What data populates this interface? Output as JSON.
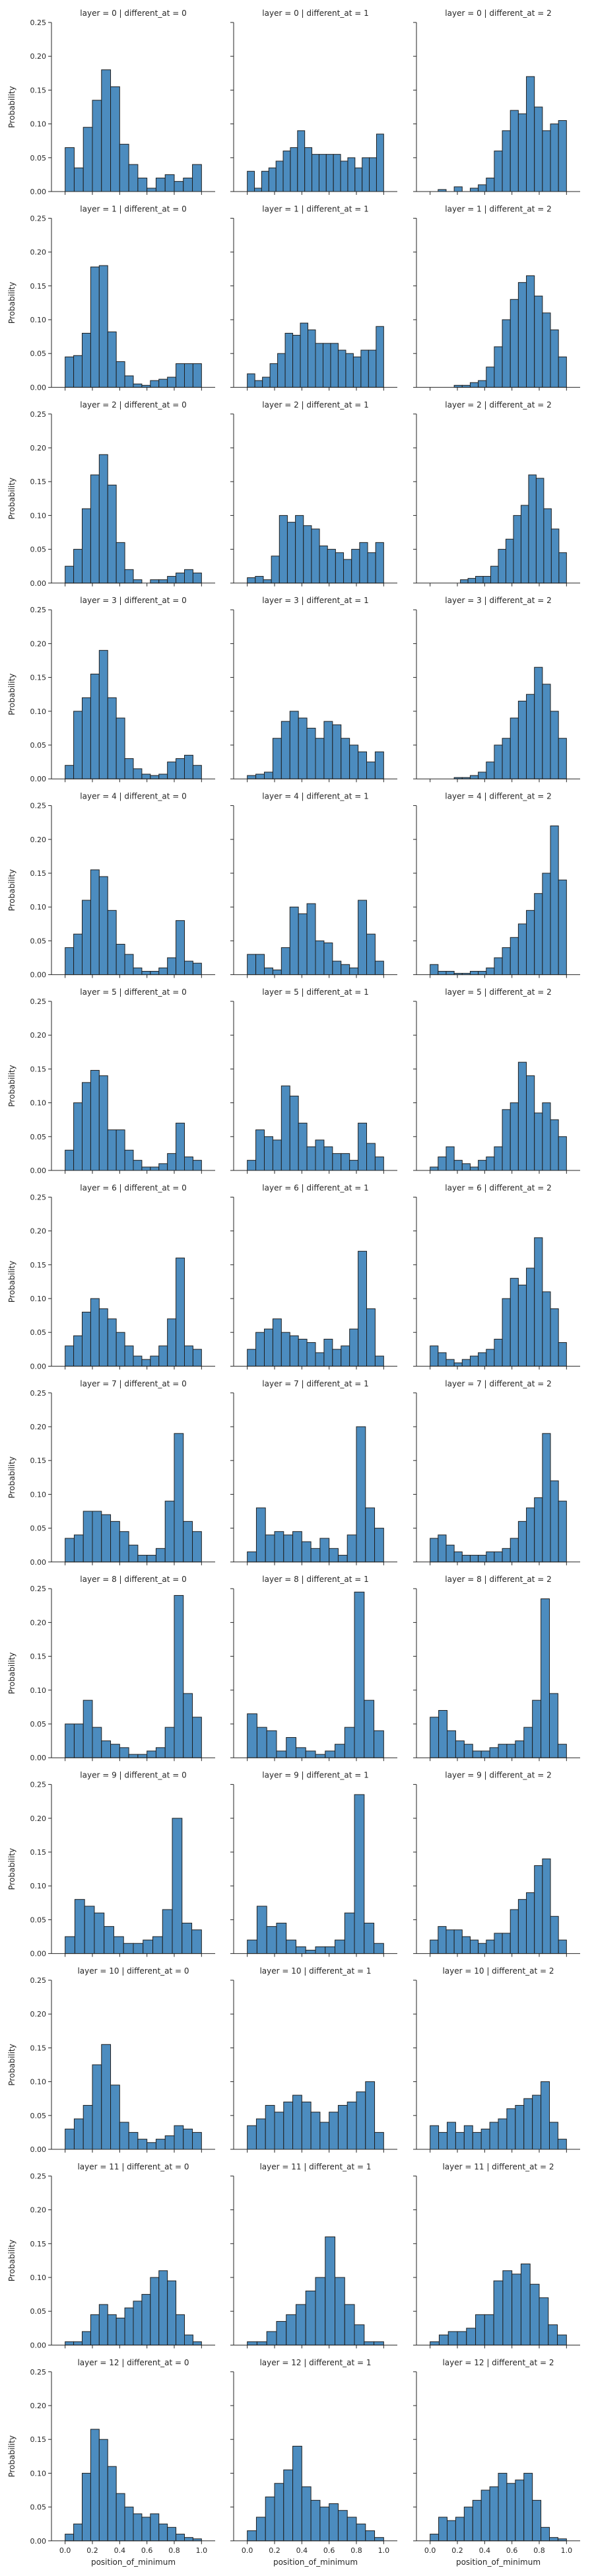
{
  "chart_data": {
    "type": "bar",
    "layout": "facet-grid",
    "x_variable": "position_of_minimum",
    "xlabel": "position_of_minimum",
    "ylabel": "Probability",
    "xlim": [
      0,
      1
    ],
    "ylim": [
      0,
      0.25
    ],
    "xticks": [
      "0.0",
      "0.2",
      "0.4",
      "0.6",
      "0.8",
      "1.0"
    ],
    "yticks": [
      "0.00",
      "0.05",
      "0.10",
      "0.15",
      "0.20",
      "0.25"
    ],
    "bins": 15,
    "bar_color": "#4c8cbf",
    "facets": [
      {
        "title": "layer = 0 | different_at = 0",
        "values": [
          0.065,
          0.035,
          0.095,
          0.135,
          0.18,
          0.155,
          0.07,
          0.04,
          0.02,
          0.005,
          0.02,
          0.025,
          0.015,
          0.02,
          0.04
        ]
      },
      {
        "title": "layer = 0 | different_at = 1",
        "values": [
          0.03,
          0.005,
          0.03,
          0.035,
          0.045,
          0.06,
          0.065,
          0.09,
          0.065,
          0.055,
          0.055,
          0.055,
          0.055,
          0.045,
          0.05,
          0.035,
          0.05,
          0.05,
          0.085
        ]
      },
      {
        "title": "layer = 0 | different_at = 2",
        "values": [
          0.0,
          0.003,
          0.0,
          0.007,
          0.0,
          0.005,
          0.01,
          0.02,
          0.06,
          0.09,
          0.12,
          0.115,
          0.17,
          0.125,
          0.09,
          0.1,
          0.105
        ]
      },
      {
        "title": "layer = 1 | different_at = 0",
        "values": [
          0.045,
          0.047,
          0.08,
          0.178,
          0.18,
          0.082,
          0.038,
          0.017,
          0.005,
          0.003,
          0.01,
          0.012,
          0.015,
          0.035,
          0.035,
          0.035
        ]
      },
      {
        "title": "layer = 1 | different_at = 1",
        "values": [
          0.02,
          0.01,
          0.015,
          0.035,
          0.05,
          0.08,
          0.077,
          0.095,
          0.085,
          0.065,
          0.065,
          0.065,
          0.055,
          0.05,
          0.045,
          0.055,
          0.055,
          0.09
        ]
      },
      {
        "title": "layer = 1 | different_at = 2",
        "values": [
          0.0,
          0.0,
          0.0,
          0.003,
          0.003,
          0.007,
          0.01,
          0.03,
          0.06,
          0.1,
          0.13,
          0.155,
          0.165,
          0.135,
          0.11,
          0.085,
          0.045
        ]
      },
      {
        "title": "layer = 2 | different_at = 0",
        "values": [
          0.025,
          0.05,
          0.11,
          0.16,
          0.19,
          0.145,
          0.06,
          0.02,
          0.005,
          0.0,
          0.005,
          0.005,
          0.01,
          0.015,
          0.02,
          0.015
        ]
      },
      {
        "title": "layer = 2 | different_at = 1",
        "values": [
          0.008,
          0.01,
          0.005,
          0.04,
          0.1,
          0.09,
          0.1,
          0.085,
          0.08,
          0.055,
          0.05,
          0.045,
          0.035,
          0.05,
          0.06,
          0.045,
          0.06
        ]
      },
      {
        "title": "layer = 2 | different_at = 2",
        "values": [
          0.0,
          0.0,
          0.0,
          0.0,
          0.005,
          0.007,
          0.01,
          0.01,
          0.025,
          0.05,
          0.065,
          0.1,
          0.115,
          0.16,
          0.155,
          0.11,
          0.08,
          0.045
        ]
      },
      {
        "title": "layer = 3 | different_at = 0",
        "values": [
          0.02,
          0.1,
          0.12,
          0.155,
          0.19,
          0.12,
          0.09,
          0.03,
          0.015,
          0.007,
          0.005,
          0.007,
          0.025,
          0.03,
          0.035,
          0.02
        ]
      },
      {
        "title": "layer = 3 | different_at = 1",
        "values": [
          0.005,
          0.007,
          0.01,
          0.06,
          0.085,
          0.1,
          0.09,
          0.075,
          0.06,
          0.085,
          0.08,
          0.06,
          0.05,
          0.04,
          0.025,
          0.04
        ]
      },
      {
        "title": "layer = 3 | different_at = 2",
        "values": [
          0.0,
          0.0,
          0.0,
          0.002,
          0.002,
          0.005,
          0.01,
          0.025,
          0.05,
          0.06,
          0.09,
          0.115,
          0.125,
          0.165,
          0.14,
          0.1,
          0.06
        ]
      },
      {
        "title": "layer = 4 | different_at = 0",
        "values": [
          0.04,
          0.06,
          0.11,
          0.155,
          0.145,
          0.095,
          0.045,
          0.03,
          0.01,
          0.005,
          0.005,
          0.01,
          0.025,
          0.08,
          0.02,
          0.017
        ]
      },
      {
        "title": "layer = 4 | different_at = 1",
        "values": [
          0.03,
          0.03,
          0.01,
          0.007,
          0.04,
          0.1,
          0.09,
          0.105,
          0.05,
          0.047,
          0.02,
          0.015,
          0.01,
          0.11,
          0.06,
          0.02
        ]
      },
      {
        "title": "layer = 4 | different_at = 2",
        "values": [
          0.015,
          0.005,
          0.005,
          0.002,
          0.002,
          0.005,
          0.005,
          0.01,
          0.025,
          0.04,
          0.055,
          0.075,
          0.095,
          0.12,
          0.15,
          0.22,
          0.14
        ]
      },
      {
        "title": "layer = 5 | different_at = 0",
        "values": [
          0.03,
          0.1,
          0.13,
          0.148,
          0.14,
          0.06,
          0.06,
          0.03,
          0.015,
          0.005,
          0.005,
          0.01,
          0.025,
          0.07,
          0.02,
          0.015
        ]
      },
      {
        "title": "layer = 5 | different_at = 1",
        "values": [
          0.015,
          0.06,
          0.05,
          0.045,
          0.125,
          0.11,
          0.07,
          0.035,
          0.045,
          0.035,
          0.025,
          0.025,
          0.015,
          0.07,
          0.04,
          0.02
        ]
      },
      {
        "title": "layer = 5 | different_at = 2",
        "values": [
          0.005,
          0.02,
          0.035,
          0.015,
          0.01,
          0.005,
          0.015,
          0.02,
          0.035,
          0.09,
          0.1,
          0.16,
          0.14,
          0.085,
          0.1,
          0.075,
          0.05
        ]
      },
      {
        "title": "layer = 6 | different_at = 0",
        "values": [
          0.03,
          0.045,
          0.08,
          0.1,
          0.085,
          0.07,
          0.05,
          0.03,
          0.015,
          0.01,
          0.015,
          0.03,
          0.07,
          0.16,
          0.03,
          0.025
        ]
      },
      {
        "title": "layer = 6 | different_at = 1",
        "values": [
          0.025,
          0.05,
          0.055,
          0.07,
          0.05,
          0.045,
          0.04,
          0.035,
          0.02,
          0.04,
          0.025,
          0.03,
          0.055,
          0.17,
          0.085,
          0.015
        ]
      },
      {
        "title": "layer = 6 | different_at = 2",
        "values": [
          0.03,
          0.02,
          0.01,
          0.005,
          0.01,
          0.015,
          0.02,
          0.025,
          0.04,
          0.1,
          0.13,
          0.12,
          0.145,
          0.19,
          0.11,
          0.085,
          0.035
        ]
      },
      {
        "title": "layer = 7 | different_at = 0",
        "values": [
          0.035,
          0.04,
          0.075,
          0.075,
          0.07,
          0.06,
          0.045,
          0.025,
          0.01,
          0.01,
          0.02,
          0.09,
          0.19,
          0.06,
          0.045
        ]
      },
      {
        "title": "layer = 7 | different_at = 1",
        "values": [
          0.015,
          0.08,
          0.04,
          0.045,
          0.04,
          0.045,
          0.03,
          0.02,
          0.035,
          0.02,
          0.01,
          0.04,
          0.2,
          0.08,
          0.05
        ]
      },
      {
        "title": "layer = 7 | different_at = 2",
        "values": [
          0.035,
          0.04,
          0.025,
          0.015,
          0.01,
          0.01,
          0.01,
          0.015,
          0.015,
          0.02,
          0.035,
          0.06,
          0.08,
          0.095,
          0.19,
          0.12,
          0.09
        ]
      },
      {
        "title": "layer = 8 | different_at = 0",
        "values": [
          0.05,
          0.05,
          0.085,
          0.045,
          0.025,
          0.02,
          0.015,
          0.005,
          0.005,
          0.01,
          0.015,
          0.045,
          0.24,
          0.095,
          0.06
        ]
      },
      {
        "title": "layer = 8 | different_at = 1",
        "values": [
          0.065,
          0.045,
          0.04,
          0.01,
          0.03,
          0.015,
          0.01,
          0.005,
          0.01,
          0.02,
          0.045,
          0.245,
          0.085,
          0.04
        ]
      },
      {
        "title": "layer = 8 | different_at = 2",
        "values": [
          0.06,
          0.07,
          0.04,
          0.025,
          0.02,
          0.01,
          0.01,
          0.015,
          0.02,
          0.02,
          0.025,
          0.045,
          0.085,
          0.235,
          0.095,
          0.02
        ]
      },
      {
        "title": "layer = 9 | different_at = 0",
        "values": [
          0.025,
          0.08,
          0.07,
          0.06,
          0.04,
          0.025,
          0.015,
          0.015,
          0.02,
          0.025,
          0.065,
          0.2,
          0.045,
          0.035
        ]
      },
      {
        "title": "layer = 9 | different_at = 1",
        "values": [
          0.02,
          0.07,
          0.04,
          0.045,
          0.02,
          0.01,
          0.005,
          0.01,
          0.01,
          0.02,
          0.06,
          0.235,
          0.045,
          0.015
        ]
      },
      {
        "title": "layer = 9 | different_at = 2",
        "values": [
          0.02,
          0.04,
          0.035,
          0.035,
          0.025,
          0.02,
          0.015,
          0.02,
          0.03,
          0.03,
          0.065,
          0.08,
          0.09,
          0.13,
          0.14,
          0.055,
          0.02
        ]
      },
      {
        "title": "layer = 10 | different_at = 0",
        "values": [
          0.03,
          0.045,
          0.065,
          0.125,
          0.155,
          0.095,
          0.04,
          0.025,
          0.015,
          0.01,
          0.015,
          0.02,
          0.035,
          0.03,
          0.025
        ]
      },
      {
        "title": "layer = 10 | different_at = 1",
        "values": [
          0.035,
          0.045,
          0.065,
          0.055,
          0.07,
          0.08,
          0.07,
          0.055,
          0.04,
          0.055,
          0.065,
          0.07,
          0.085,
          0.1,
          0.025
        ]
      },
      {
        "title": "layer = 10 | different_at = 2",
        "values": [
          0.035,
          0.025,
          0.04,
          0.025,
          0.035,
          0.025,
          0.03,
          0.04,
          0.045,
          0.06,
          0.065,
          0.075,
          0.08,
          0.1,
          0.04,
          0.015
        ]
      },
      {
        "title": "layer = 11 | different_at = 0",
        "values": [
          0.005,
          0.005,
          0.02,
          0.045,
          0.06,
          0.045,
          0.04,
          0.055,
          0.065,
          0.075,
          0.1,
          0.11,
          0.095,
          0.045,
          0.015,
          0.005
        ]
      },
      {
        "title": "layer = 11 | different_at = 1",
        "values": [
          0.005,
          0.005,
          0.02,
          0.035,
          0.045,
          0.06,
          0.08,
          0.1,
          0.16,
          0.1,
          0.06,
          0.03,
          0.005,
          0.005
        ]
      },
      {
        "title": "layer = 11 | different_at = 2",
        "values": [
          0.005,
          0.015,
          0.02,
          0.02,
          0.025,
          0.045,
          0.045,
          0.095,
          0.11,
          0.105,
          0.12,
          0.09,
          0.07,
          0.03,
          0.015
        ]
      },
      {
        "title": "layer = 12 | different_at = 0",
        "values": [
          0.01,
          0.025,
          0.1,
          0.165,
          0.15,
          0.11,
          0.07,
          0.05,
          0.04,
          0.035,
          0.04,
          0.025,
          0.02,
          0.01,
          0.005,
          0.003
        ]
      },
      {
        "title": "layer = 12 | different_at = 1",
        "values": [
          0.015,
          0.035,
          0.065,
          0.085,
          0.105,
          0.14,
          0.08,
          0.06,
          0.05,
          0.055,
          0.045,
          0.035,
          0.025,
          0.015,
          0.005
        ]
      },
      {
        "title": "layer = 12 | different_at = 2",
        "values": [
          0.01,
          0.035,
          0.03,
          0.035,
          0.05,
          0.06,
          0.075,
          0.08,
          0.1,
          0.085,
          0.09,
          0.1,
          0.06,
          0.02,
          0.005,
          0.003
        ]
      }
    ]
  }
}
